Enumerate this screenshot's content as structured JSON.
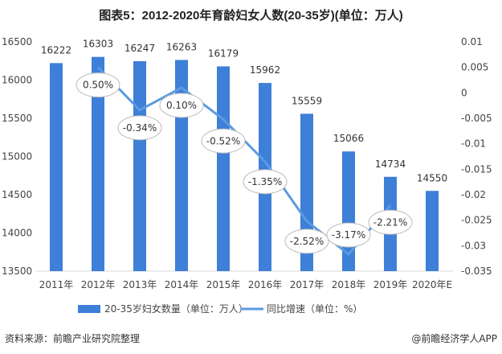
{
  "chart_data": {
    "type": "bar+line",
    "title": "图表5：2012-2020年育龄妇女人数(20-35岁)(单位：万人)",
    "categories": [
      "2011年",
      "2012年",
      "2013年",
      "2014年",
      "2015年",
      "2016年",
      "2017年",
      "2018年",
      "2019年",
      "2020年E"
    ],
    "series": [
      {
        "name": "20-35岁妇女数量（单位：万人）",
        "type": "bar",
        "axis": "left",
        "color": "#3E7FD8",
        "values": [
          16222,
          16303,
          16247,
          16263,
          16179,
          15962,
          15559,
          15066,
          14734,
          14550
        ]
      },
      {
        "name": "同比增速（单位：%）",
        "type": "line",
        "axis": "right",
        "color": "#5B9BE0",
        "values": [
          null,
          0.005,
          -0.0034,
          0.001,
          -0.0052,
          -0.0135,
          -0.0252,
          -0.0317,
          -0.0221,
          null
        ],
        "labels": [
          "",
          "0.50%",
          "-0.34%",
          "0.10%",
          "-0.52%",
          "-1.35%",
          "-2.52%",
          "-3.17%",
          "-2.21%",
          ""
        ]
      }
    ],
    "left_axis": {
      "ylim": [
        13500,
        16500
      ],
      "ticks": [
        "16500",
        "16000",
        "15500",
        "15000",
        "14500",
        "14000",
        "13500"
      ]
    },
    "right_axis": {
      "ylim": [
        -0.035,
        0.01
      ],
      "ticks": [
        "0.01",
        "0.005",
        "0",
        "-0.005",
        "-0.01",
        "-0.015",
        "-0.02",
        "-0.025",
        "-0.03",
        "-0.035"
      ]
    },
    "grid": false,
    "legend": "bottom"
  },
  "footer": {
    "source": "资料来源：前瞻产业研究院整理",
    "brand": "@前瞻经济学人APP"
  }
}
